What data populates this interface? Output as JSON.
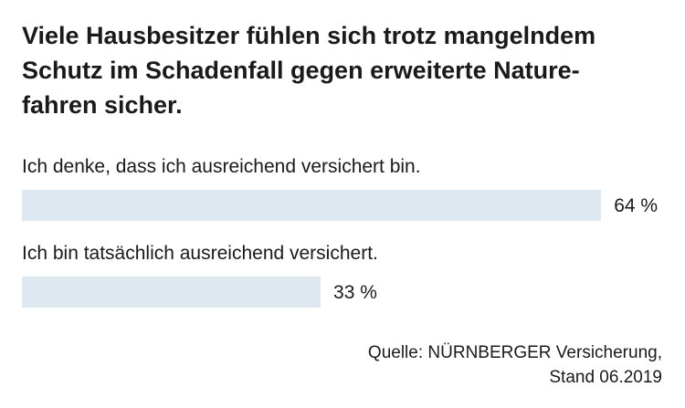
{
  "chart_data": {
    "type": "bar",
    "title_lines": [
      "Viele Hausbesitzer fühlen sich trotz mangelndem",
      "Schutz im Schadenfall gegen erweiterte Nature-",
      "fahren sicher."
    ],
    "categories": [
      "Ich denke, dass ich ausreichend versichert bin.",
      "Ich bin tatsächlich ausreichend versichert."
    ],
    "values": [
      64,
      33
    ],
    "value_labels": [
      "64 %",
      "33 %"
    ],
    "unit": "%",
    "xlim": [
      0,
      100
    ],
    "bar_color": "#dde8f0",
    "source_lines": [
      "Quelle: NÜRNBERGER Versicherung,",
      "Stand 06.2019"
    ]
  }
}
